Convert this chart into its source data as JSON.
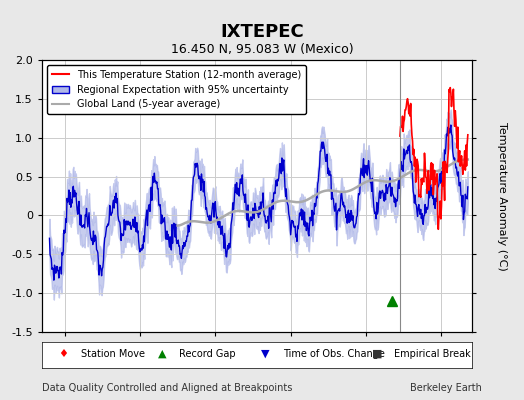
{
  "title": "IXTEPEC",
  "subtitle": "16.450 N, 95.083 W (Mexico)",
  "ylabel": "Temperature Anomaly (°C)",
  "xlabel_left": "Data Quality Controlled and Aligned at Breakpoints",
  "xlabel_right": "Berkeley Earth",
  "ylim": [
    -1.5,
    2.0
  ],
  "xlim": [
    1957,
    2014
  ],
  "xticks": [
    1960,
    1970,
    1980,
    1990,
    2000,
    2010
  ],
  "yticks": [
    -1.5,
    -1.0,
    -0.5,
    0.0,
    0.5,
    1.0,
    1.5,
    2.0
  ],
  "bg_color": "#e8e8e8",
  "plot_bg_color": "#ffffff",
  "grid_color": "#cccccc",
  "vertical_line_x": 2004.5,
  "record_gap_x": 2003.5,
  "record_gap_y": -1.1,
  "legend_labels": [
    "This Temperature Station (12-month average)",
    "Regional Expectation with 95% uncertainty",
    "Global Land (5-year average)"
  ],
  "marker_legend": [
    "Station Move",
    "Record Gap",
    "Time of Obs. Change",
    "Empirical Break"
  ]
}
